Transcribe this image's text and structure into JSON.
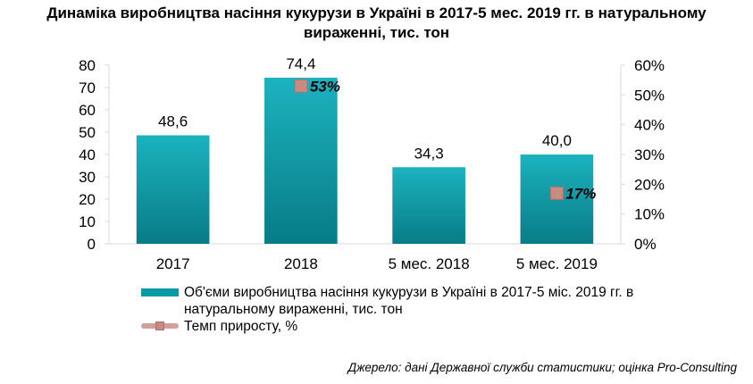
{
  "title_line1": "Динаміка виробництва насіння кукурузи в Україні в 2017-5 мес. 2019 гг. в натуральному",
  "title_line2": "вираженні, тис. тон",
  "source": "Джерело: дані Державної служби статистики; оцінка Pro-Consulting",
  "colors": {
    "bar": "#0a9aa6",
    "bar_top": "#1bb3bf",
    "bar_bottom": "#087c87",
    "marker": "#c98a80",
    "marker_border": "#b0706a",
    "line": "#d1a09a",
    "axis": "#d9d9d9"
  },
  "chart_data": {
    "type": "bar",
    "categories": [
      "2017",
      "2018",
      "5 мес. 2018",
      "5 мес. 2019"
    ],
    "series": [
      {
        "name": "Об'єми виробництва насіння кукурузи в Україні в 2017-5 міс. 2019 гг. в натуральному вираженні, тис. тон",
        "values": [
          48.6,
          74.4,
          34.3,
          40.0
        ],
        "labels": [
          "48,6",
          "74,4",
          "34,3",
          "40,0"
        ],
        "axis": "left"
      },
      {
        "name": "Темп приросту, %",
        "type": "line",
        "values": [
          null,
          53,
          null,
          17
        ],
        "labels": [
          "",
          "53%",
          "",
          "17%"
        ],
        "axis": "right"
      }
    ],
    "ylim": [
      0,
      80
    ],
    "yticks": [
      "0",
      "10",
      "20",
      "30",
      "40",
      "50",
      "60",
      "70",
      "80"
    ],
    "y2lim": [
      0,
      60
    ],
    "y2ticks": [
      "0%",
      "10%",
      "20%",
      "30%",
      "40%",
      "50%",
      "60%"
    ],
    "legend_position": "bottom",
    "grid": false
  }
}
